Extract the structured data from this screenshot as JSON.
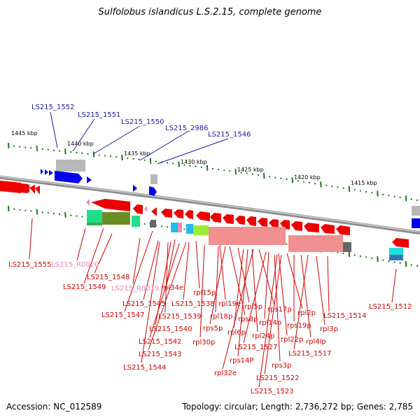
{
  "title": "Sulfolobus islandicus L.S.2.15, complete genome",
  "accession": "Accession: NC_012589",
  "summary": "Topology: circular; Length: 2,736,272 bp; Genes: 2,785",
  "colors": {
    "backbone": "#8c8c8c",
    "forward_gene": "#0000ee",
    "reverse_gene": "#ee0000",
    "pseudo_gene": "#f08cb4",
    "scale_tick": "#1a7a1a",
    "top_label": "#1a1aa8",
    "bottom_label": "#d40000",
    "pink_label": "#e888b8"
  },
  "scale_labels": [
    "1445 kbp",
    "1440 kbp",
    "1435 kbp",
    "1430 kbp",
    "1425 kbp",
    "1420 kbp",
    "1415 kbp"
  ],
  "top_gene_labels": [
    "LS215_1552",
    "LS215_1551",
    "LS215_1550",
    "LS215_2986",
    "LS215_1546"
  ],
  "bottom_gene_labels": [
    "LS215_1555",
    "LS215_R0020",
    "LS215_1548",
    "LS215_1549",
    "LS215_R0019",
    "rpl34e",
    "LS215_1545",
    "LS215_1547",
    "rpl15p",
    "LS215_1538",
    "LS215_1539",
    "rpl19e",
    "LS215_1540",
    "rpl18p",
    "rps5p",
    "LS215_1542",
    "rpl5p",
    "rps8p",
    "rpl30p",
    "LS215_1543",
    "rpl6p",
    "rps17p",
    "rpl14p",
    "rpl24p",
    "LS215_1544",
    "LS215_1527",
    "rpl2p",
    "rps14P",
    "rpl22p",
    "rps19p",
    "rpl32e",
    "rps3p",
    "LS215_1522",
    "LS215_1523",
    "rpl4lp",
    "LS215_1517",
    "rpl3p",
    "LS215_1514",
    "LS215_1512"
  ]
}
